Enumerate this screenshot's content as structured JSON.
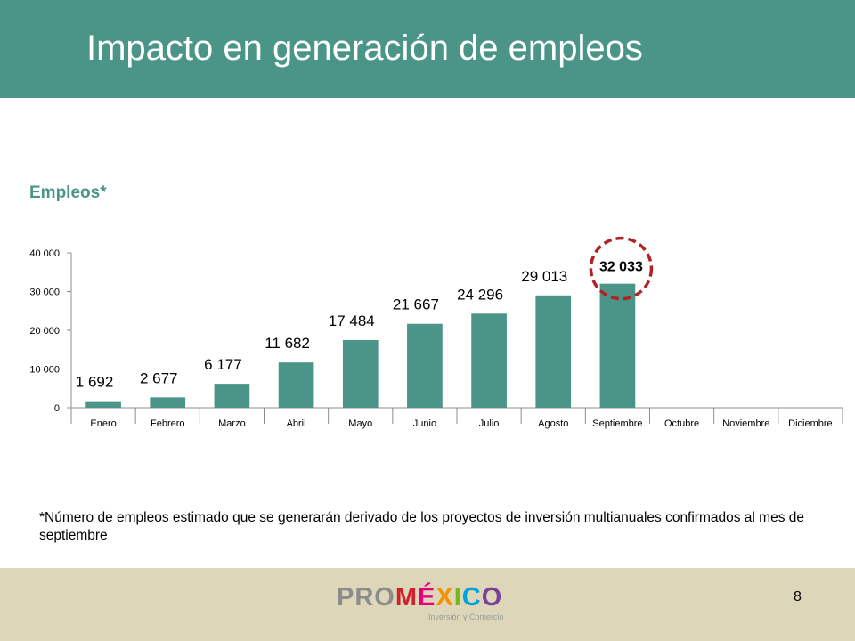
{
  "slide": {
    "title": "Impacto en generación de empleos",
    "subtitle": "Empleos*",
    "footnote": "*Número de empleos estimado que se generarán derivado de los proyectos de inversión multianuales confirmados al mes de septiembre",
    "page_number": "8",
    "logo_text": "PROMÉXICO",
    "logo_tagline": "Inversión y Comercio"
  },
  "colors": {
    "header": "#4a9488",
    "bar": "#4a9488",
    "highlight_circle": "#b22222",
    "footer": "#ddd6b8"
  },
  "chart_data": {
    "type": "bar",
    "title": "Empleos*",
    "xlabel": "",
    "ylabel": "",
    "categories": [
      "Enero",
      "Febrero",
      "Marzo",
      "Abril",
      "Mayo",
      "Junio",
      "Julio",
      "Agosto",
      "Septiembre",
      "Octubre",
      "Noviembre",
      "Diciembre"
    ],
    "values": [
      1692,
      2677,
      6177,
      11682,
      17484,
      21667,
      24296,
      29013,
      32033,
      null,
      null,
      null
    ],
    "data_labels": [
      "1 692",
      "2 677",
      "6 177",
      "11 682",
      "17 484",
      "21 667",
      "24 296",
      "29 013",
      "32 033",
      "",
      "",
      ""
    ],
    "yticks": [
      0,
      10000,
      20000,
      30000,
      40000
    ],
    "ytick_labels": [
      "0",
      "10 000",
      "20 000",
      "30 000",
      "40 000"
    ],
    "ylim": [
      0,
      40000
    ],
    "grid": false,
    "highlight_category": "Septiembre"
  }
}
